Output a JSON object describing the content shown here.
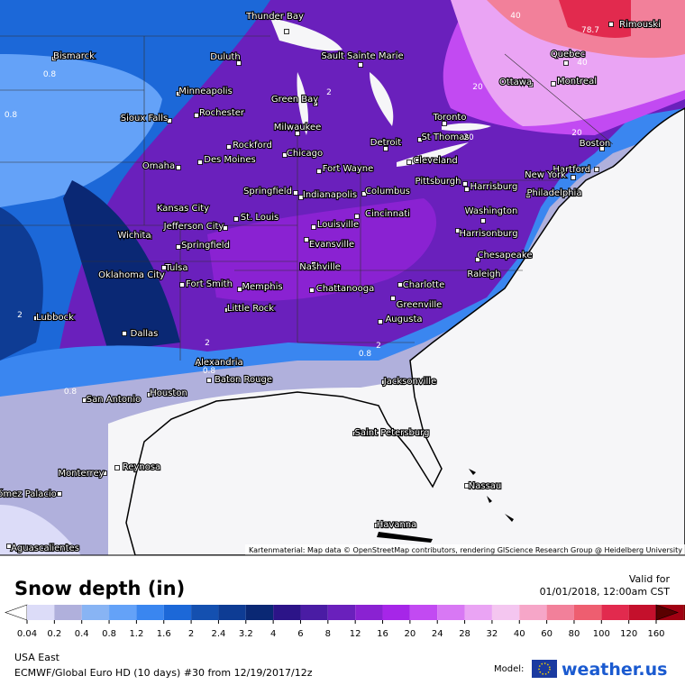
{
  "map": {
    "cities": [
      "Thunder Bay",
      "Bismarck",
      "Duluth",
      "Sault Sainte Marie",
      "Minneapolis",
      "Green Bay",
      "Rochester",
      "Sioux Falls",
      "Milwaukee",
      "Detroit",
      "Toronto",
      "St Thomas",
      "Rockford",
      "Chicago",
      "Cleveland",
      "Des Moines",
      "Omaha",
      "Fort Wayne",
      "Ottawa",
      "Montreal",
      "Quebec",
      "Rimouski",
      "Boston",
      "Hartford",
      "New York",
      "Philadelphia",
      "Harrisburg",
      "Pittsburgh",
      "Columbus",
      "Indianapolis",
      "Springfield",
      "Kansas City",
      "Jefferson City",
      "St. Louis",
      "Cincinnati",
      "Washington",
      "Louisville",
      "Harrisonburg",
      "Wichita",
      "Springfield",
      "Evansville",
      "Chesapeake",
      "Oklahoma City",
      "Tulsa",
      "Nashville",
      "Raleigh",
      "Fort Smith",
      "Memphis",
      "Charlotte",
      "Chattanooga",
      "Greenville",
      "Little Rock",
      "Lubbock",
      "Augusta",
      "Dallas",
      "Alexandria",
      "Baton Rouge",
      "Jacksonville",
      "San Antonio",
      "Houston",
      "Saint Petersburg",
      "Reynosa",
      "Monterrey",
      "ómez Palacio",
      "Nassau",
      "Havanna",
      "Aguascalientes"
    ],
    "contour_labels": [
      "78.7",
      "40",
      "40",
      "20",
      "20",
      "20",
      "0.8",
      "0.8",
      "2",
      "2",
      "0.8",
      "0.8",
      "0.8",
      "2",
      "2"
    ],
    "attribution": "Kartenmaterial: Map data © OpenStreetMap contributors, rendering GIScience Research Group @ Heidelberg University"
  },
  "legend": {
    "title": "Snow depth (in)",
    "ticks": [
      0.04,
      0.2,
      0.4,
      0.8,
      1.2,
      1.6,
      2,
      2.4,
      3.2,
      4,
      6,
      8,
      12,
      16,
      20,
      24,
      28,
      32,
      40,
      60,
      80,
      100,
      120,
      160
    ],
    "colors": [
      "#ffffff",
      "#dcdcf8",
      "#b0b0dc",
      "#88b4f4",
      "#64a2f8",
      "#3a86f0",
      "#1c68d8",
      "#1450b0",
      "#0e3c94",
      "#0a2874",
      "#2c1488",
      "#4a1ca4",
      "#6a20bc",
      "#8a22d2",
      "#a626e8",
      "#c24af2",
      "#d878f4",
      "#eaa4f4",
      "#f4c6f0",
      "#f6a6c8",
      "#f2809a",
      "#ee5e70",
      "#e22a4e",
      "#c4102c",
      "#a00012",
      "#800000",
      "#5a0000"
    ]
  },
  "header": {
    "valid_label": "Valid for",
    "valid_date": "01/01/2018, 12:00am CST"
  },
  "footer": {
    "region": "USA East",
    "model_run": "ECMWF/Global Euro HD (10 days) #30 from 12/19/2017/12z",
    "model_label": "Model:",
    "brand": "weather.us"
  }
}
